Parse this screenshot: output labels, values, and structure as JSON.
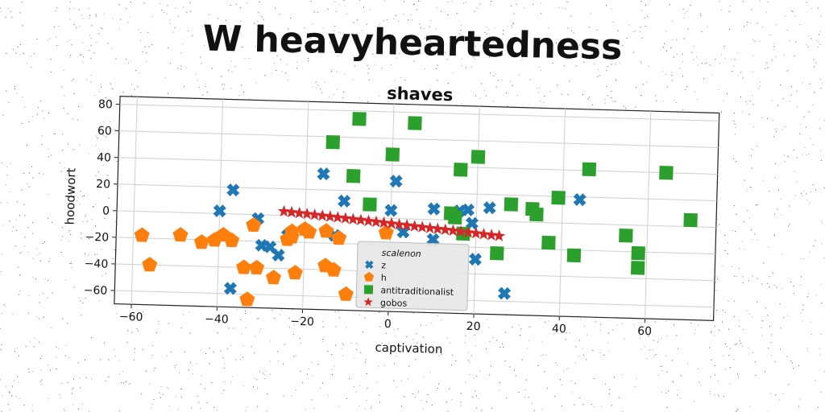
{
  "suptitle": "W heavyheartedness",
  "chart_data": {
    "type": "scatter",
    "title": "shaves",
    "xlabel": "captivation",
    "ylabel": "hoodwort",
    "xlim": [
      -64,
      76
    ],
    "ylim": [
      -70,
      86
    ],
    "xticks": [
      -60,
      -40,
      -20,
      0,
      20,
      40,
      60
    ],
    "yticks": [
      -60,
      -40,
      -20,
      0,
      20,
      40,
      60,
      80
    ],
    "grid": true,
    "legend_position": "lower-center",
    "series": [
      {
        "name": "scalenon",
        "marker": "none",
        "color": "#ffffff",
        "x": [],
        "y": []
      },
      {
        "name": "z",
        "marker": "x",
        "color": "#1f77b4",
        "x": [
          -40,
          -37,
          -31,
          -30,
          -28,
          -26,
          -24,
          -16,
          -13,
          -11,
          0,
          1,
          3,
          10,
          10,
          16,
          18,
          19,
          20,
          23,
          27,
          44,
          -37,
          -24
        ],
        "y": [
          2,
          18,
          -3,
          -23,
          -24,
          -30,
          -15,
          32,
          -14,
          12,
          6,
          28,
          -10,
          8,
          -15,
          7,
          8,
          -2,
          -29,
          10,
          -54,
          18,
          -56,
          -15
        ]
      },
      {
        "name": "h",
        "marker": "pentagon",
        "color": "#ff7f0e",
        "x": [
          -58,
          -56,
          -49,
          -44,
          -41,
          -39,
          -37,
          -34,
          -33,
          -32,
          -31,
          -27,
          -23,
          -23,
          -22,
          -20,
          -19,
          -15,
          -15,
          -13,
          -12,
          -10,
          -1,
          -24
        ],
        "y": [
          -18,
          -40,
          -17,
          -22,
          -20,
          -16,
          -20,
          -40,
          -64,
          -8,
          -40,
          -47,
          -12,
          -16,
          -43,
          -10,
          -12,
          -11,
          -37,
          -40,
          -16,
          -58,
          -11,
          -18
        ]
      },
      {
        "name": "antitraditionalist",
        "marker": "square",
        "color": "#2ca02c",
        "x": [
          -8,
          -14,
          -9,
          -5,
          0,
          5,
          14,
          16,
          17,
          20,
          25,
          28,
          33,
          34,
          37,
          39,
          43,
          46,
          55,
          58,
          58,
          64,
          70,
          15
        ],
        "y": [
          74,
          56,
          31,
          10,
          48,
          72,
          5,
          38,
          -10,
          48,
          -24,
          13,
          10,
          6,
          -15,
          19,
          -24,
          41,
          -8,
          -21,
          -32,
          40,
          5,
          2
        ]
      },
      {
        "name": "gobos",
        "marker": "star",
        "color": "#d62728",
        "x": [
          -25,
          -23.2,
          -21.4,
          -19.6,
          -17.8,
          -16,
          -14.2,
          -12.4,
          -10.6,
          -8.8,
          -7,
          -5.2,
          -3.4,
          -1.6,
          0.2,
          2,
          3.8,
          5.6,
          7.4,
          9.2,
          11,
          12.8,
          14.6,
          16.4,
          18.2,
          20,
          21.8,
          23.6,
          25.4
        ],
        "y": [
          3,
          2.5,
          2,
          1.5,
          1,
          0.5,
          0,
          -0.5,
          -1,
          -1.5,
          -2,
          -2.5,
          -3,
          -3.5,
          -4,
          -4.5,
          -5,
          -5.5,
          -6,
          -6.5,
          -7,
          -7.5,
          -8,
          -8.5,
          -9,
          -9.5,
          -10,
          -10.5,
          -11
        ]
      }
    ]
  }
}
